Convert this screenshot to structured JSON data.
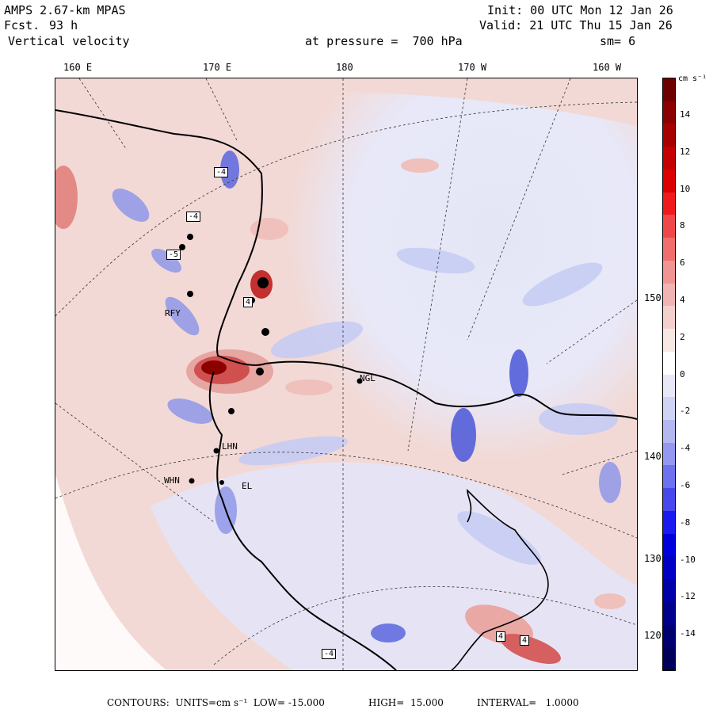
{
  "header": {
    "model": "AMPS 2.67-km MPAS",
    "fcst_label": "Fcst.",
    "fcst_hours": "93 h",
    "field": "Vertical velocity",
    "init": "Init: 00 UTC Mon 12 Jan 26",
    "valid": "Valid: 21 UTC Thu 15 Jan 26",
    "pressure": "at pressure =  700 hPa",
    "smooth": "sm= 6"
  },
  "longitude_labels": [
    "160 E",
    "170 E",
    "180",
    "170 W",
    "160 W"
  ],
  "latitude_labels": [
    "150 W",
    "140 W",
    "130 W",
    "120 W"
  ],
  "stations": [
    "NGL",
    "LHN",
    "WHN",
    "EL",
    "RFY"
  ],
  "contour_boxes": [
    "-4",
    "-4",
    "-5",
    "4",
    "-4",
    "4",
    "4"
  ],
  "colorbar": {
    "units": "cm s⁻¹",
    "labels": [
      "14",
      "12",
      "10",
      "8",
      "6",
      "4",
      "2",
      "0",
      "-2",
      "-4",
      "-6",
      "-8",
      "-10",
      "-12",
      "-14"
    ],
    "colors": [
      "#6e0000",
      "#8c0000",
      "#a80000",
      "#c40000",
      "#dc0000",
      "#f01a1a",
      "#f04848",
      "#f06e6e",
      "#f09494",
      "#f0b4b4",
      "#f4d0cc",
      "#f8e8e4",
      "#ffffff",
      "#e8e8f8",
      "#d0d4f4",
      "#b4b8f0",
      "#9498f0",
      "#6e72ee",
      "#4848ee",
      "#1a1af0",
      "#0000dc",
      "#0000c4",
      "#0000a8",
      "#00008c",
      "#000070",
      "#00005a"
    ]
  },
  "footer": {
    "contours": "CONTOURS:  UNITS=cm s⁻¹  LOW= -15.000",
    "high": "HIGH=  15.000",
    "interval": "INTERVAL=   1.0000"
  }
}
